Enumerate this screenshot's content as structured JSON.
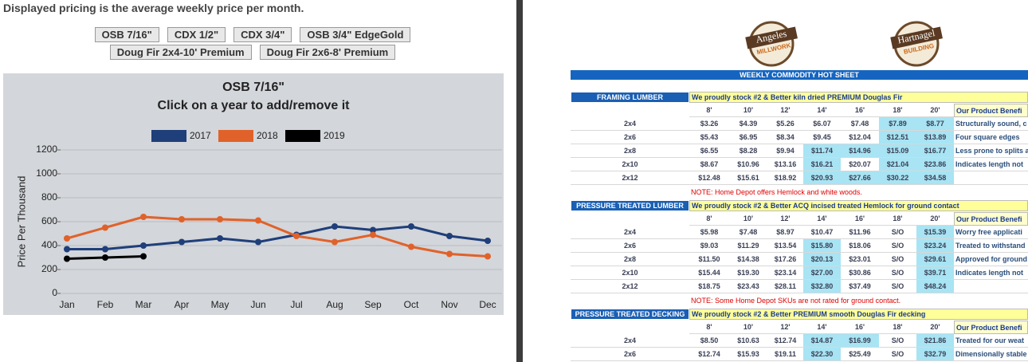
{
  "header": "Displayed pricing is the average weekly price per month.",
  "buttons": [
    "OSB 7/16\"",
    "CDX 1/2\"",
    "CDX 3/4\"",
    "OSB 3/4\" EdgeGold",
    "Doug Fir 2x4-10' Premium",
    "Doug Fir 2x6-8' Premium"
  ],
  "chart_data": {
    "type": "line",
    "title": "OSB 7/16\"",
    "subtitle": "Click on a year to add/remove it",
    "y_label": "Price Per Thousand",
    "categories": [
      "Jan",
      "Feb",
      "Mar",
      "Apr",
      "May",
      "Jun",
      "Jul",
      "Aug",
      "Sep",
      "Oct",
      "Nov",
      "Dec"
    ],
    "series": [
      {
        "name": "2017",
        "color": "#1f3f7a",
        "values": [
          370,
          370,
          400,
          430,
          460,
          430,
          490,
          560,
          530,
          560,
          480,
          440
        ]
      },
      {
        "name": "2018",
        "color": "#e0622a",
        "values": [
          460,
          550,
          640,
          620,
          620,
          610,
          480,
          430,
          490,
          390,
          330,
          310
        ]
      },
      {
        "name": "2019",
        "color": "#000000",
        "values": [
          290,
          300,
          310,
          null,
          null,
          null,
          null,
          null,
          null,
          null,
          null,
          null
        ]
      }
    ],
    "ylim": [
      0,
      1200
    ],
    "yticks": [
      0,
      200,
      400,
      600,
      800,
      1000,
      1200
    ],
    "grid": true
  },
  "logos": [
    {
      "name": "Angeles",
      "sub": "MILLWORK"
    },
    {
      "name": "Hartnagel",
      "sub": "BUILDING"
    }
  ],
  "sheet_title": "WEEKLY COMMODITY HOT SHEET",
  "sections": [
    {
      "label": "FRAMING LUMBER",
      "stock": "We proudly stock #2 & Better kiln dried PREMIUM Douglas Fir",
      "lengths": [
        "8'",
        "10'",
        "12'",
        "14'",
        "16'",
        "18'",
        "20'"
      ],
      "benefit_header": "Our Product Benefi",
      "rows": [
        {
          "size": "2x4",
          "prices": [
            "$3.26",
            "$4.39",
            "$5.26",
            "$6.07",
            "$7.48",
            "$7.89",
            "$8.77"
          ],
          "highlight": [
            5,
            6
          ],
          "benefit": "Structurally sound, c"
        },
        {
          "size": "2x6",
          "prices": [
            "$5.43",
            "$6.95",
            "$8.34",
            "$9.45",
            "$12.04",
            "$12.51",
            "$13.89"
          ],
          "highlight": [
            5,
            6
          ],
          "benefit": "Four square edges"
        },
        {
          "size": "2x8",
          "prices": [
            "$6.55",
            "$8.28",
            "$9.94",
            "$11.74",
            "$14.96",
            "$15.09",
            "$16.77"
          ],
          "highlight": [
            3,
            4,
            5,
            6
          ],
          "benefit": "Less prone to splits a"
        },
        {
          "size": "2x10",
          "prices": [
            "$8.67",
            "$10.96",
            "$13.16",
            "$16.21",
            "$20.07",
            "$21.04",
            "$23.86"
          ],
          "highlight": [
            3,
            5,
            6
          ],
          "benefit": "Indicates length not"
        },
        {
          "size": "2x12",
          "prices": [
            "$12.48",
            "$15.61",
            "$18.92",
            "$20.93",
            "$27.66",
            "$30.22",
            "$34.58"
          ],
          "highlight": [
            3,
            4,
            5,
            6
          ]
        }
      ],
      "note": "NOTE: Home Depot offers Hemlock and white woods."
    },
    {
      "label": "PRESSURE TREATED LUMBER",
      "stock": "We proudly stock #2 & Better ACQ incised treated Hemlock for ground contact",
      "lengths": [
        "8'",
        "10'",
        "12'",
        "14'",
        "16'",
        "18'",
        "20'"
      ],
      "benefit_header": "Our Product Benefi",
      "rows": [
        {
          "size": "2x4",
          "prices": [
            "$5.98",
            "$7.48",
            "$8.97",
            "$10.47",
            "$11.96",
            "S/O",
            "$15.39"
          ],
          "highlight": [
            6
          ],
          "benefit": "Worry free applicati"
        },
        {
          "size": "2x6",
          "prices": [
            "$9.03",
            "$11.29",
            "$13.54",
            "$15.80",
            "$18.06",
            "S/O",
            "$23.24"
          ],
          "highlight": [
            3,
            6
          ],
          "benefit": "Treated to withstand"
        },
        {
          "size": "2x8",
          "prices": [
            "$11.50",
            "$14.38",
            "$17.26",
            "$20.13",
            "$23.01",
            "S/O",
            "$29.61"
          ],
          "highlight": [
            3,
            6
          ],
          "benefit": "Approved for ground"
        },
        {
          "size": "2x10",
          "prices": [
            "$15.44",
            "$19.30",
            "$23.14",
            "$27.00",
            "$30.86",
            "S/O",
            "$39.71"
          ],
          "highlight": [
            3,
            6
          ],
          "benefit": "Indicates length not"
        },
        {
          "size": "2x12",
          "prices": [
            "$18.75",
            "$23.43",
            "$28.11",
            "$32.80",
            "$37.49",
            "S/O",
            "$48.24"
          ],
          "highlight": [
            3,
            6
          ]
        }
      ],
      "note": "NOTE: Some Home Depot SKUs are not rated for ground contact."
    },
    {
      "label": "PRESSURE TREATED DECKING",
      "stock": "We proudly stock #2 & Better PREMIUM smooth Douglas Fir decking",
      "lengths": [
        "8'",
        "10'",
        "12'",
        "14'",
        "16'",
        "18'",
        "20'"
      ],
      "benefit_header": "Our Product Benefi",
      "rows": [
        {
          "size": "2x4",
          "prices": [
            "$8.50",
            "$10.63",
            "$12.74",
            "$14.87",
            "$16.99",
            "S/O",
            "$21.86"
          ],
          "highlight": [
            3,
            4,
            6
          ],
          "benefit": "Treated for our weat"
        },
        {
          "size": "2x6",
          "prices": [
            "$12.74",
            "$15.93",
            "$19.11",
            "$22.30",
            "$25.49",
            "S/O",
            "$32.79"
          ],
          "highlight": [
            3,
            6
          ],
          "benefit": "Dimensionally stable"
        }
      ]
    }
  ]
}
